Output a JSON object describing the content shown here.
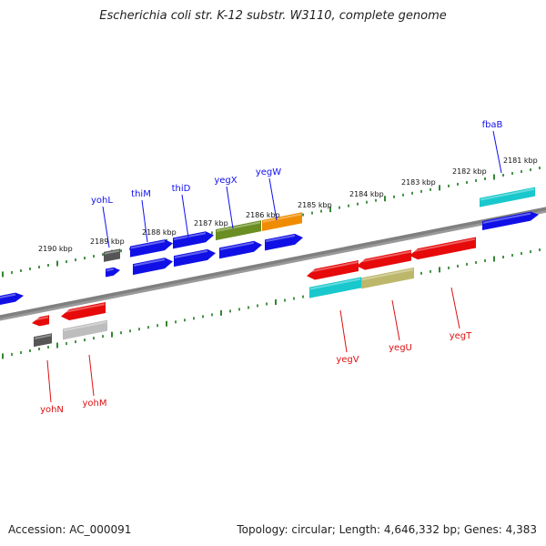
{
  "title": "Escherichia coli str. K-12 substr. W3110, complete genome",
  "footer": {
    "accession": "Accession: AC_000091",
    "topology": "Topology: circular; Length: 4,646,332 bp; Genes: 4,383"
  },
  "colors": {
    "background": "#ffffff",
    "backbone": "#808080",
    "tick": "#1a7a1a",
    "forward_label": "#1010ee",
    "reverse_label": "#dd1111",
    "blue": "#1010e6",
    "red": "#e60a0a",
    "cyan": "#18c8cc",
    "olive": "#6b8e23",
    "orange": "#f08c00",
    "grey": "#555555",
    "lightgrey": "#bdbdbd",
    "khaki": "#bdb76b"
  },
  "scale_labels": [
    "2190 kbp",
    "2189 kbp",
    "2188 kbp",
    "2187 kbp",
    "2186 kbp",
    "2185 kbp",
    "2184 kbp",
    "2183 kbp",
    "2182 kbp",
    "2181 kbp"
  ],
  "forward_gene_labels": [
    "yohL",
    "thiM",
    "thiD",
    "yegX",
    "yegW",
    "fbaB"
  ],
  "reverse_gene_labels": [
    "yohN",
    "yohM",
    "yegV",
    "yegU",
    "yegT"
  ]
}
